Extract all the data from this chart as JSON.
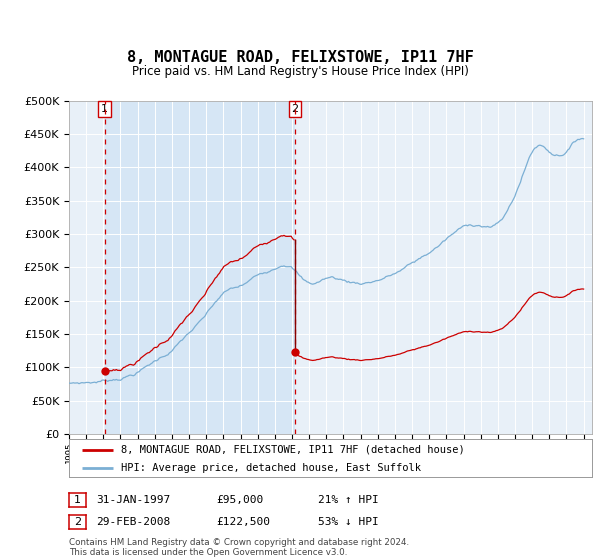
{
  "title": "8, MONTAGUE ROAD, FELIXSTOWE, IP11 7HF",
  "subtitle": "Price paid vs. HM Land Registry's House Price Index (HPI)",
  "legend_line1": "8, MONTAGUE ROAD, FELIXSTOWE, IP11 7HF (detached house)",
  "legend_line2": "HPI: Average price, detached house, East Suffolk",
  "annotation1_date": "31-JAN-1997",
  "annotation1_price": "£95,000",
  "annotation1_hpi": "21% ↑ HPI",
  "annotation2_date": "29-FEB-2008",
  "annotation2_price": "£122,500",
  "annotation2_hpi": "53% ↓ HPI",
  "footer": "Contains HM Land Registry data © Crown copyright and database right 2024.\nThis data is licensed under the Open Government Licence v3.0.",
  "sale1_year": 1997.08,
  "sale1_value": 95000,
  "sale2_year": 2008.17,
  "sale2_value": 122500,
  "hpi_color": "#7bafd4",
  "price_color": "#cc0000",
  "dashed_line_color": "#cc0000",
  "highlight_color": "#d6e6f5",
  "plot_bg_color": "#e8f0f8",
  "ylim": [
    0,
    500000
  ],
  "xlim": [
    1995.0,
    2025.5
  ],
  "yticks": [
    0,
    50000,
    100000,
    150000,
    200000,
    250000,
    300000,
    350000,
    400000,
    450000,
    500000
  ]
}
